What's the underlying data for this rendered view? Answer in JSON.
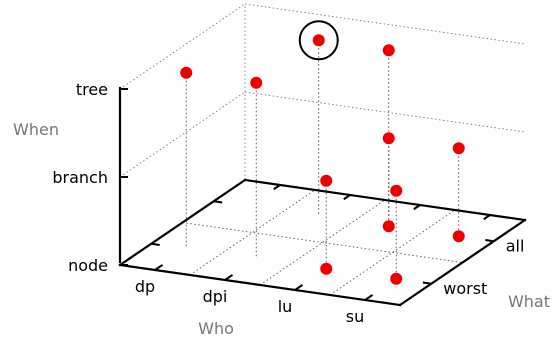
{
  "chart_data": {
    "type": "scatter",
    "subtype": "3d-scatter",
    "title": "",
    "axes": {
      "x": {
        "label": "Who",
        "ticks": [
          "dp",
          "dpi",
          "lu",
          "su"
        ]
      },
      "y": {
        "label": "What",
        "ticks": [
          "worst",
          "all"
        ]
      },
      "z": {
        "label": "When",
        "ticks": [
          "node",
          "branch",
          "tree"
        ]
      }
    },
    "grid": true,
    "marker_color": "#ee0000",
    "points": [
      {
        "who": "dpi",
        "what": "all",
        "when": "tree",
        "highlighted": true
      },
      {
        "who": "lu",
        "what": "all",
        "when": "tree"
      },
      {
        "who": "dp",
        "what": "worst",
        "when": "tree"
      },
      {
        "who": "dpi",
        "what": "worst",
        "when": "tree"
      },
      {
        "who": "lu",
        "what": "all",
        "when": "branch"
      },
      {
        "who": "su",
        "what": "all",
        "when": "branch"
      },
      {
        "who": "lu",
        "what": "worst",
        "when": "branch"
      },
      {
        "who": "su",
        "what": "worst",
        "when": "branch"
      },
      {
        "who": "lu",
        "what": "all",
        "when": "node"
      },
      {
        "who": "su",
        "what": "all",
        "when": "node"
      },
      {
        "who": "lu",
        "what": "worst",
        "when": "node"
      },
      {
        "who": "su",
        "what": "worst",
        "when": "node"
      }
    ]
  }
}
